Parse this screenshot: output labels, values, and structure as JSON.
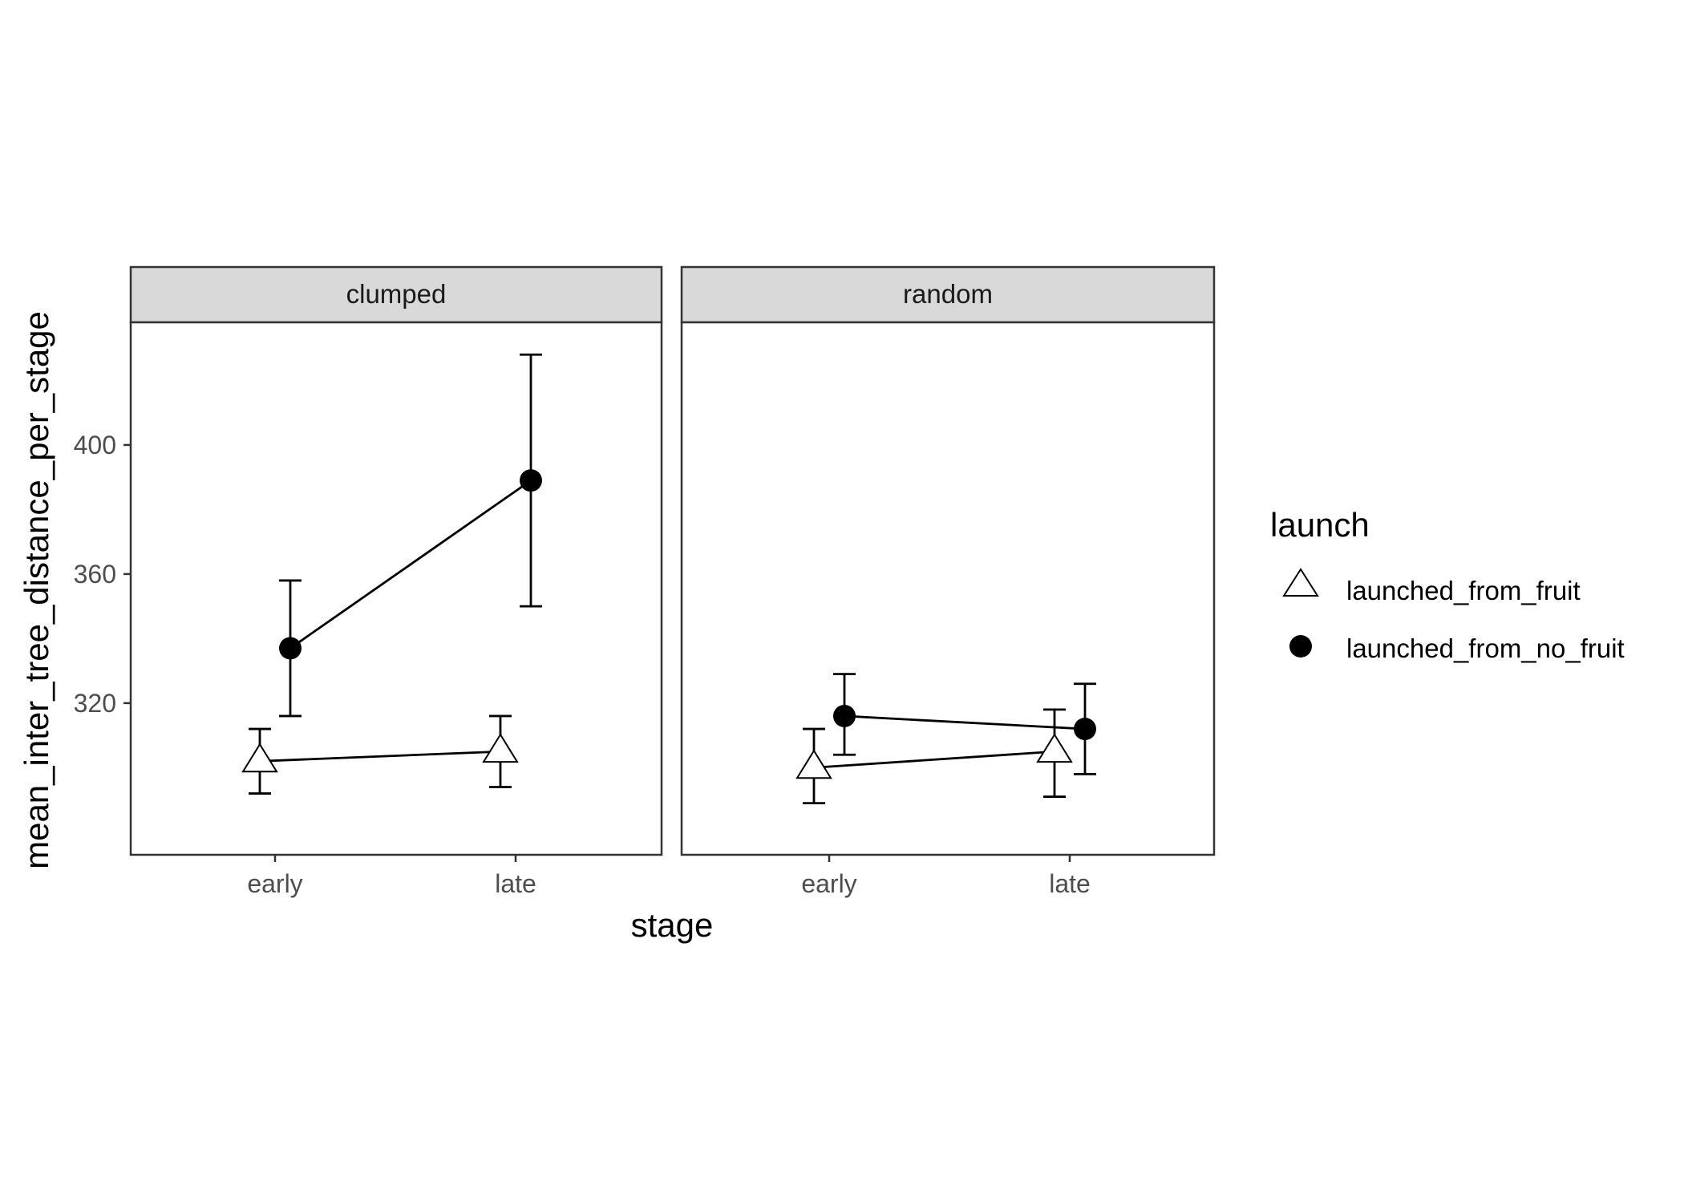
{
  "chart_data": {
    "type": "line",
    "facet_by": "treatment",
    "panels": [
      "clumped",
      "random"
    ],
    "categories": [
      "early",
      "late"
    ],
    "xlabel": "stage",
    "ylabel": "mean_inter_tree_distance_per_stage",
    "ylim": [
      273,
      438
    ],
    "yticks": [
      320,
      360,
      400
    ],
    "legend": {
      "title": "launch",
      "position": "right",
      "entries": [
        {
          "name": "launched_from_fruit",
          "shape": "open-triangle"
        },
        {
          "name": "launched_from_no_fruit",
          "shape": "filled-circle"
        }
      ]
    },
    "series": [
      {
        "name": "launched_from_fruit",
        "panels": {
          "clumped": {
            "mean": [
              302,
              305
            ],
            "lower": [
              292,
              294
            ],
            "upper": [
              312,
              316
            ]
          },
          "random": {
            "mean": [
              300,
              305
            ],
            "lower": [
              289,
              291
            ],
            "upper": [
              312,
              318
            ]
          }
        }
      },
      {
        "name": "launched_from_no_fruit",
        "panels": {
          "clumped": {
            "mean": [
              337,
              389
            ],
            "lower": [
              316,
              350
            ],
            "upper": [
              358,
              428
            ]
          },
          "random": {
            "mean": [
              316,
              312
            ],
            "lower": [
              304,
              298
            ],
            "upper": [
              329,
              326
            ]
          }
        }
      }
    ],
    "grid": false,
    "colors": {
      "line": "#000000",
      "strip_fill": "#d9d9d9",
      "panel_border": "#333333"
    }
  }
}
